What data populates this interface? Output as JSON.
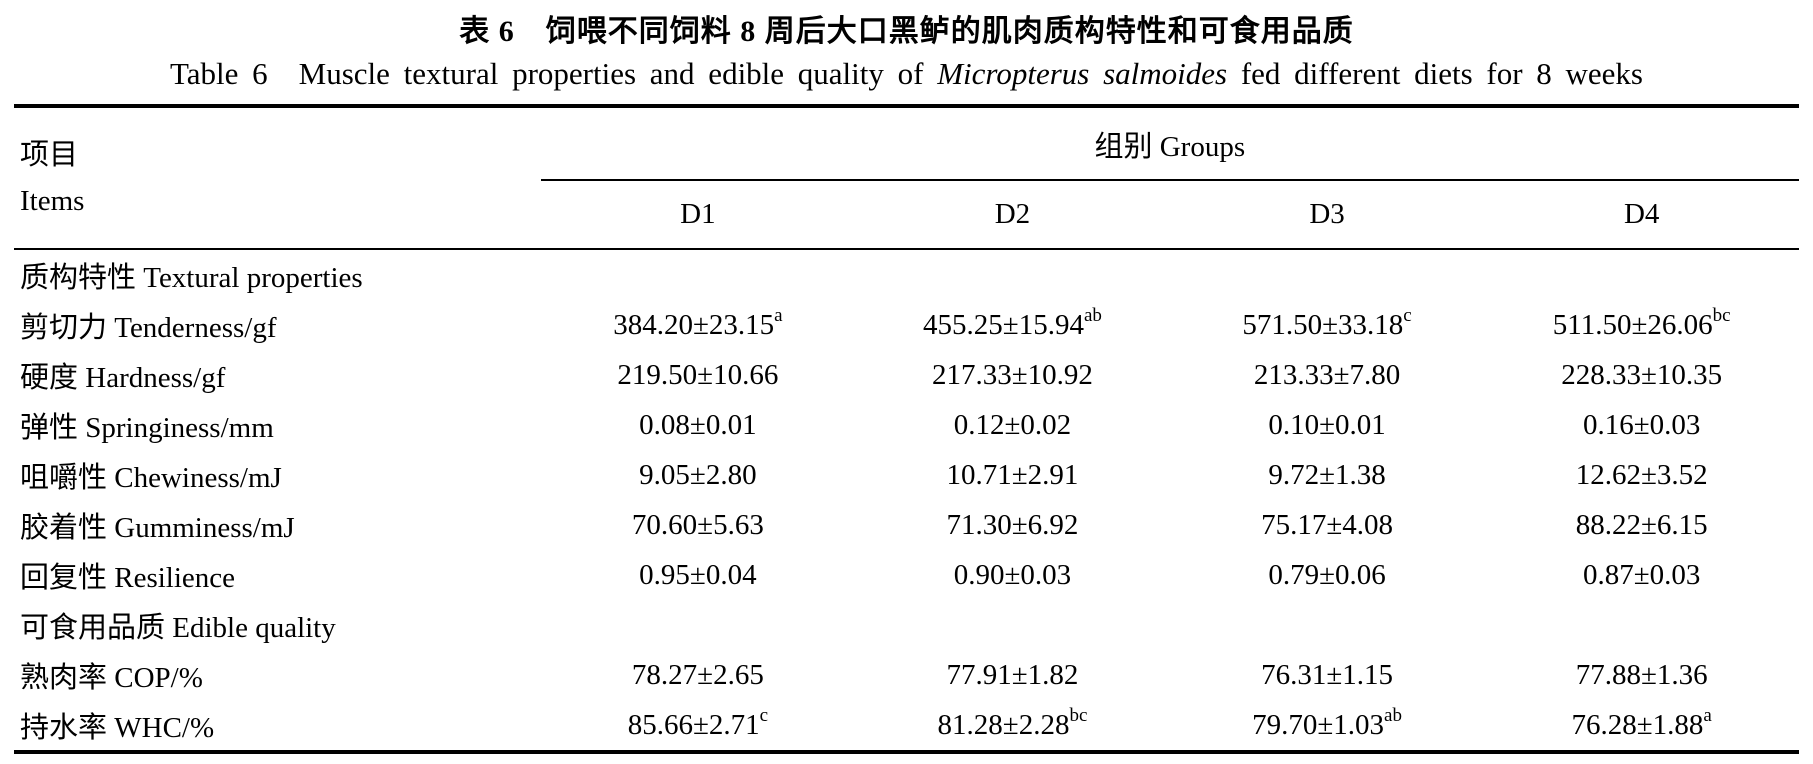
{
  "page": {
    "title_cn": "表 6　饲喂不同饲料 8 周后大口黑鲈的肌肉质构特性和可食用品质",
    "title_en_prefix": "Table 6　Muscle textural properties and edible quality of ",
    "title_en_species": "Micropterus salmoides",
    "title_en_suffix": " fed different diets for 8 weeks"
  },
  "table": {
    "items_header_cn": "项目",
    "items_header_en": "Items",
    "groups_header": "组别 Groups",
    "group_columns": [
      "D1",
      "D2",
      "D3",
      "D4"
    ],
    "rows": [
      {
        "label": "质构特性 Textural properties",
        "section": true,
        "values": []
      },
      {
        "label": "剪切力 Tenderness/gf",
        "section": false,
        "values": [
          {
            "text": "384.20±23.15",
            "sup": "a"
          },
          {
            "text": "455.25±15.94",
            "sup": "ab"
          },
          {
            "text": "571.50±33.18",
            "sup": "c"
          },
          {
            "text": "511.50±26.06",
            "sup": "bc"
          }
        ]
      },
      {
        "label": "硬度 Hardness/gf",
        "section": false,
        "values": [
          {
            "text": "219.50±10.66",
            "sup": ""
          },
          {
            "text": "217.33±10.92",
            "sup": ""
          },
          {
            "text": "213.33±7.80",
            "sup": ""
          },
          {
            "text": "228.33±10.35",
            "sup": ""
          }
        ]
      },
      {
        "label": "弹性 Springiness/mm",
        "section": false,
        "values": [
          {
            "text": "0.08±0.01",
            "sup": ""
          },
          {
            "text": "0.12±0.02",
            "sup": ""
          },
          {
            "text": "0.10±0.01",
            "sup": ""
          },
          {
            "text": "0.16±0.03",
            "sup": ""
          }
        ]
      },
      {
        "label": "咀嚼性 Chewiness/mJ",
        "section": false,
        "values": [
          {
            "text": "9.05±2.80",
            "sup": ""
          },
          {
            "text": "10.71±2.91",
            "sup": ""
          },
          {
            "text": "9.72±1.38",
            "sup": ""
          },
          {
            "text": "12.62±3.52",
            "sup": ""
          }
        ]
      },
      {
        "label": "胶着性 Gumminess/mJ",
        "section": false,
        "values": [
          {
            "text": "70.60±5.63",
            "sup": ""
          },
          {
            "text": "71.30±6.92",
            "sup": ""
          },
          {
            "text": "75.17±4.08",
            "sup": ""
          },
          {
            "text": "88.22±6.15",
            "sup": ""
          }
        ]
      },
      {
        "label": "回复性 Resilience",
        "section": false,
        "values": [
          {
            "text": "0.95±0.04",
            "sup": ""
          },
          {
            "text": "0.90±0.03",
            "sup": ""
          },
          {
            "text": "0.79±0.06",
            "sup": ""
          },
          {
            "text": "0.87±0.03",
            "sup": ""
          }
        ]
      },
      {
        "label": "可食用品质 Edible quality",
        "section": true,
        "values": []
      },
      {
        "label": "熟肉率 COP/%",
        "section": false,
        "values": [
          {
            "text": "78.27±2.65",
            "sup": ""
          },
          {
            "text": "77.91±1.82",
            "sup": ""
          },
          {
            "text": "76.31±1.15",
            "sup": ""
          },
          {
            "text": "77.88±1.36",
            "sup": ""
          }
        ]
      },
      {
        "label": "持水率 WHC/%",
        "section": false,
        "values": [
          {
            "text": "85.66±2.71",
            "sup": "c"
          },
          {
            "text": "81.28±2.28",
            "sup": "bc"
          },
          {
            "text": "79.70±1.03",
            "sup": "ab"
          },
          {
            "text": "76.28±1.88",
            "sup": "a"
          }
        ]
      }
    ]
  }
}
